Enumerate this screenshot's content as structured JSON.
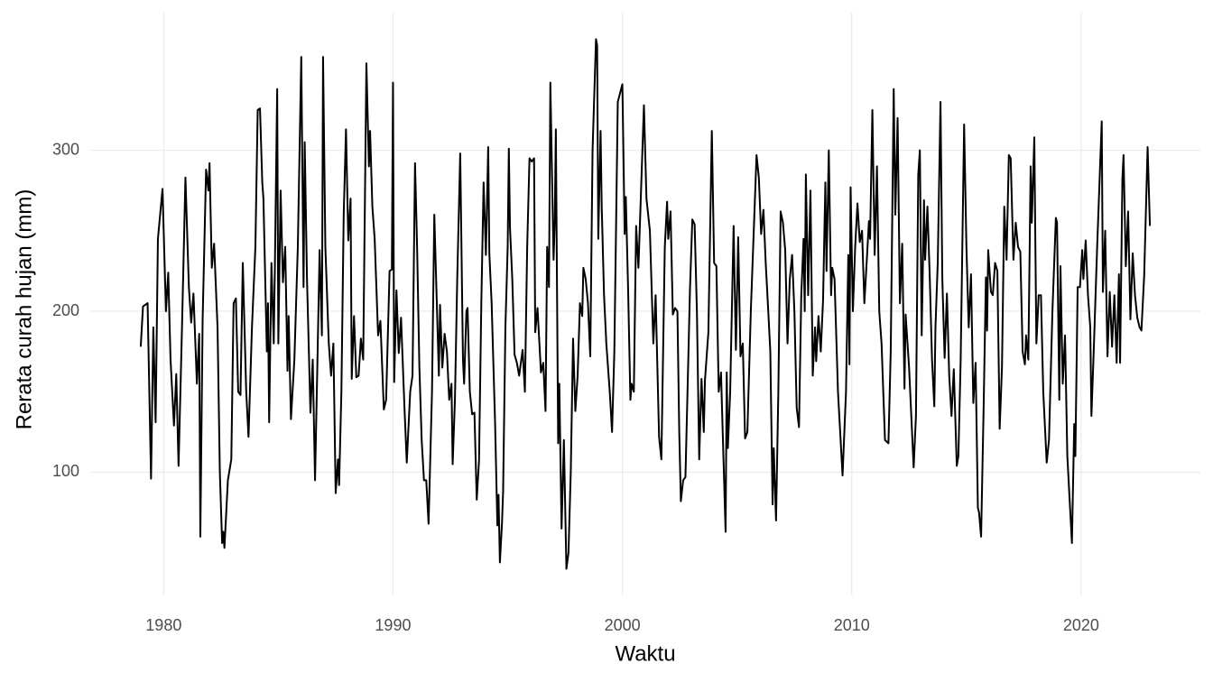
{
  "chart_data": {
    "type": "line",
    "x_label": "Waktu",
    "y_label": "Rerata curah hujan (mm)",
    "xlim": [
      1976.8,
      2025.2
    ],
    "xticks": [
      1980,
      1990,
      2000,
      2010,
      2020
    ],
    "ylim": [
      23.5,
      385.5
    ],
    "yticks": [
      100,
      200,
      300
    ],
    "grid": true,
    "series": [
      {
        "color": "#000000",
        "x": [
          1979.0,
          1979.1,
          1979.3,
          1979.45,
          1979.55,
          1979.65,
          1979.75,
          1979.95,
          1980.1,
          1980.2,
          1980.3,
          1980.45,
          1980.55,
          1980.65,
          1980.8,
          1980.95,
          1981.1,
          1981.2,
          1981.3,
          1981.45,
          1981.55,
          1981.6,
          1981.7,
          1981.85,
          1981.95,
          1982.0,
          1982.1,
          1982.2,
          1982.35,
          1982.45,
          1982.55,
          1982.6,
          1982.65,
          1982.8,
          1982.95,
          1983.05,
          1983.15,
          1983.25,
          1983.35,
          1983.45,
          1983.6,
          1983.7,
          1983.85,
          1984.0,
          1984.1,
          1984.2,
          1984.3,
          1984.35,
          1984.5,
          1984.55,
          1984.6,
          1984.7,
          1984.8,
          1984.85,
          1984.95,
          1985.0,
          1985.1,
          1985.2,
          1985.3,
          1985.4,
          1985.45,
          1985.55,
          1985.7,
          1985.85,
          1986.0,
          1986.1,
          1986.15,
          1986.25,
          1986.4,
          1986.5,
          1986.6,
          1986.7,
          1986.8,
          1986.9,
          1986.95,
          1987.05,
          1987.2,
          1987.3,
          1987.4,
          1987.5,
          1987.6,
          1987.65,
          1987.75,
          1987.85,
          1987.95,
          1988.05,
          1988.15,
          1988.2,
          1988.3,
          1988.4,
          1988.5,
          1988.6,
          1988.7,
          1988.84,
          1988.95,
          1989.0,
          1989.1,
          1989.2,
          1989.35,
          1989.45,
          1989.6,
          1989.7,
          1989.85,
          1989.95,
          1990.0,
          1990.05,
          1990.15,
          1990.25,
          1990.35,
          1990.5,
          1990.6,
          1990.75,
          1990.85,
          1990.96,
          1991.05,
          1991.15,
          1991.25,
          1991.35,
          1991.45,
          1991.55,
          1991.7,
          1991.8,
          1992.0,
          1992.05,
          1992.15,
          1992.25,
          1992.35,
          1992.45,
          1992.55,
          1992.6,
          1992.7,
          1992.8,
          1992.93,
          1993.05,
          1993.1,
          1993.2,
          1993.25,
          1993.35,
          1993.45,
          1993.55,
          1993.65,
          1993.75,
          1993.85,
          1993.95,
          1994.05,
          1994.15,
          1994.2,
          1994.3,
          1994.45,
          1994.55,
          1994.6,
          1994.66,
          1994.75,
          1994.8,
          1994.9,
          1995.0,
          1995.05,
          1995.1,
          1995.2,
          1995.3,
          1995.4,
          1995.5,
          1995.65,
          1995.75,
          1995.85,
          1995.95,
          1996.05,
          1996.15,
          1996.2,
          1996.3,
          1996.45,
          1996.55,
          1996.65,
          1996.72,
          1996.8,
          1996.86,
          1997.0,
          1997.05,
          1997.1,
          1997.2,
          1997.25,
          1997.35,
          1997.45,
          1997.56,
          1997.65,
          1997.75,
          1997.85,
          1997.95,
          1998.05,
          1998.15,
          1998.25,
          1998.3,
          1998.4,
          1998.5,
          1998.6,
          1998.7,
          1998.85,
          1998.9,
          1998.95,
          1999.05,
          1999.1,
          1999.2,
          1999.3,
          1999.45,
          1999.55,
          1999.65,
          1999.8,
          2000.0,
          2000.1,
          2000.15,
          2000.25,
          2000.35,
          2000.4,
          2000.5,
          2000.6,
          2000.7,
          2000.94,
          2001.05,
          2001.2,
          2001.35,
          2001.45,
          2001.6,
          2001.7,
          2001.85,
          2001.95,
          2002.0,
          2002.1,
          2002.2,
          2002.3,
          2002.4,
          2002.48,
          2002.55,
          2002.65,
          2002.75,
          2002.95,
          2003.05,
          2003.15,
          2003.25,
          2003.35,
          2003.45,
          2003.55,
          2003.6,
          2003.75,
          2003.9,
          2004.0,
          2004.1,
          2004.2,
          2004.3,
          2004.5,
          2004.55,
          2004.6,
          2004.7,
          2004.85,
          2004.95,
          2005.05,
          2005.15,
          2005.25,
          2005.35,
          2005.45,
          2005.6,
          2005.85,
          2005.95,
          2006.05,
          2006.15,
          2006.25,
          2006.35,
          2006.45,
          2006.55,
          2006.6,
          2006.7,
          2006.8,
          2006.9,
          2007.0,
          2007.1,
          2007.2,
          2007.3,
          2007.4,
          2007.5,
          2007.6,
          2007.7,
          2007.8,
          2007.9,
          2007.95,
          2008.0,
          2008.1,
          2008.2,
          2008.3,
          2008.4,
          2008.45,
          2008.55,
          2008.65,
          2008.75,
          2008.85,
          2008.9,
          2009.0,
          2009.1,
          2009.15,
          2009.25,
          2009.4,
          2009.6,
          2009.75,
          2009.85,
          2009.9,
          2009.95,
          2010.05,
          2010.15,
          2010.25,
          2010.35,
          2010.45,
          2010.55,
          2010.65,
          2010.75,
          2010.8,
          2010.9,
          2011.0,
          2011.1,
          2011.2,
          2011.3,
          2011.45,
          2011.6,
          2011.7,
          2011.83,
          2011.9,
          2012.0,
          2012.1,
          2012.2,
          2012.3,
          2012.35,
          2012.5,
          2012.7,
          2012.8,
          2012.9,
          2012.97,
          2013.05,
          2013.15,
          2013.2,
          2013.3,
          2013.4,
          2013.5,
          2013.6,
          2013.65,
          2013.75,
          2013.87,
          2013.95,
          2014.05,
          2014.15,
          2014.25,
          2014.35,
          2014.45,
          2014.58,
          2014.65,
          2014.75,
          2014.9,
          2015.0,
          2015.1,
          2015.2,
          2015.3,
          2015.4,
          2015.5,
          2015.55,
          2015.64,
          2015.75,
          2015.85,
          2015.9,
          2015.95,
          2016.07,
          2016.15,
          2016.25,
          2016.35,
          2016.45,
          2016.55,
          2016.65,
          2016.75,
          2016.85,
          2016.93,
          2017.05,
          2017.15,
          2017.25,
          2017.35,
          2017.45,
          2017.55,
          2017.6,
          2017.7,
          2017.8,
          2017.85,
          2017.96,
          2018.05,
          2018.15,
          2018.25,
          2018.35,
          2018.5,
          2018.6,
          2018.75,
          2018.9,
          2018.95,
          2019.05,
          2019.1,
          2019.2,
          2019.3,
          2019.4,
          2019.6,
          2019.7,
          2019.75,
          2019.85,
          2019.95,
          2020.05,
          2020.1,
          2020.2,
          2020.3,
          2020.4,
          2020.45,
          2020.55,
          2020.7,
          2020.9,
          2020.95,
          2021.05,
          2021.15,
          2021.25,
          2021.35,
          2021.45,
          2021.55,
          2021.65,
          2021.7,
          2021.8,
          2021.85,
          2021.95,
          2022.05,
          2022.15,
          2022.25,
          2022.35,
          2022.45,
          2022.55,
          2022.63,
          2022.75,
          2022.9,
          2023.0
        ],
        "values": [
          178,
          203,
          205,
          96,
          190,
          131,
          245,
          276,
          200,
          224,
          170,
          129,
          161,
          104,
          190,
          283,
          215,
          193,
          211,
          155,
          186,
          60,
          195,
          288,
          275,
          292,
          227,
          242,
          190,
          100,
          56,
          63,
          53,
          95,
          108,
          205,
          208,
          150,
          148,
          230,
          150,
          122,
          190,
          240,
          325,
          326,
          280,
          270,
          175,
          205,
          131,
          230,
          180,
          228,
          338,
          180,
          275,
          218,
          240,
          163,
          197,
          133,
          170,
          240,
          358,
          215,
          305,
          220,
          137,
          170,
          95,
          165,
          238,
          185,
          358,
          240,
          180,
          160,
          180,
          87,
          108,
          92,
          150,
          260,
          313,
          244,
          270,
          158,
          197,
          159,
          160,
          183,
          170,
          354,
          290,
          312,
          265,
          245,
          185,
          194,
          139,
          145,
          225,
          226,
          342,
          156,
          213,
          174,
          196,
          140,
          106,
          150,
          160,
          292,
          240,
          165,
          120,
          95,
          95,
          68,
          150,
          260,
          160,
          204,
          165,
          186,
          175,
          145,
          155,
          105,
          145,
          220,
          298,
          170,
          155,
          200,
          202,
          150,
          136,
          137,
          83,
          107,
          205,
          280,
          235,
          302,
          236,
          205,
          131,
          67,
          86,
          44,
          68,
          88,
          190,
          240,
          301,
          252,
          220,
          173,
          168,
          160,
          176,
          150,
          240,
          295,
          293,
          295,
          187,
          202,
          162,
          168,
          138,
          240,
          215,
          342,
          232,
          254,
          313,
          118,
          155,
          65,
          120,
          40,
          50,
          100,
          183,
          138,
          160,
          205,
          197,
          227,
          220,
          205,
          172,
          300,
          369,
          365,
          245,
          312,
          265,
          210,
          180,
          150,
          125,
          175,
          330,
          341,
          248,
          271,
          214,
          145,
          155,
          150,
          253,
          227,
          328,
          270,
          250,
          180,
          210,
          122,
          108,
          240,
          268,
          245,
          262,
          198,
          202,
          200,
          125,
          82,
          95,
          97,
          215,
          257,
          254,
          200,
          108,
          158,
          125,
          157,
          187,
          312,
          230,
          228,
          150,
          162,
          63,
          162,
          115,
          150,
          253,
          176,
          246,
          172,
          180,
          121,
          125,
          200,
          297,
          283,
          248,
          263,
          230,
          203,
          175,
          80,
          115,
          70,
          150,
          262,
          255,
          238,
          180,
          220,
          235,
          200,
          140,
          128,
          210,
          245,
          200,
          285,
          210,
          275,
          160,
          190,
          169,
          197,
          175,
          207,
          280,
          225,
          300,
          210,
          227,
          220,
          150,
          98,
          150,
          235,
          167,
          277,
          200,
          240,
          267,
          243,
          250,
          205,
          230,
          256,
          245,
          325,
          235,
          290,
          200,
          180,
          120,
          118,
          175,
          338,
          260,
          320,
          205,
          242,
          152,
          198,
          165,
          103,
          135,
          285,
          300,
          185,
          269,
          232,
          265,
          222,
          170,
          141,
          190,
          230,
          330,
          220,
          171,
          211,
          160,
          135,
          164,
          104,
          110,
          170,
          316,
          240,
          190,
          223,
          143,
          168,
          78,
          75,
          60,
          140,
          221,
          188,
          238,
          212,
          210,
          230,
          225,
          127,
          165,
          265,
          232,
          297,
          295,
          232,
          255,
          240,
          237,
          175,
          167,
          185,
          170,
          290,
          255,
          308,
          180,
          210,
          210,
          150,
          106,
          120,
          200,
          258,
          255,
          145,
          228,
          155,
          185,
          110,
          56,
          130,
          110,
          215,
          215,
          238,
          220,
          244,
          210,
          190,
          135,
          175,
          240,
          318,
          212,
          250,
          172,
          212,
          178,
          210,
          168,
          223,
          168,
          282,
          297,
          228,
          262,
          195,
          236,
          210,
          196,
          190,
          188,
          222,
          302,
          253
        ]
      }
    ]
  }
}
